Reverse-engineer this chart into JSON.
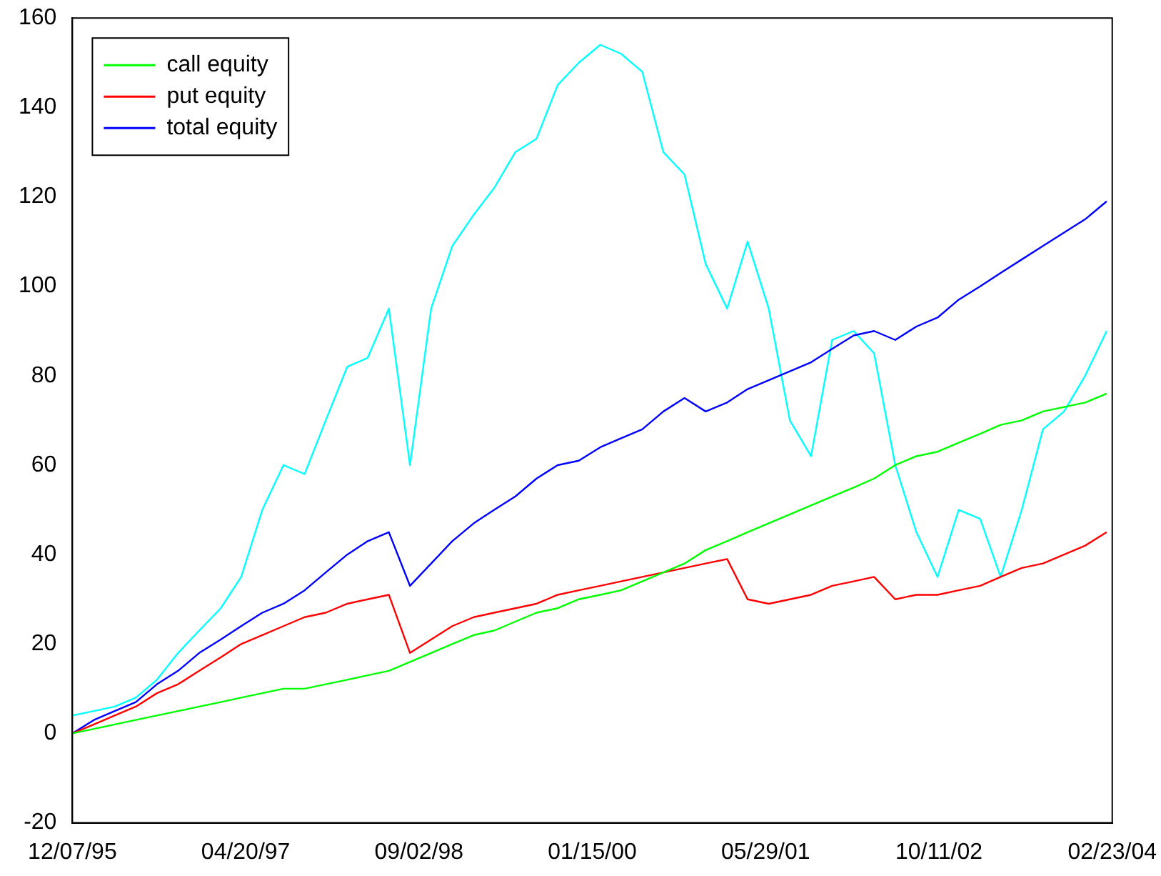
{
  "chart_data": {
    "type": "line",
    "x": [
      "1995-12-07",
      "1996-02-07",
      "1996-04-07",
      "1996-06-07",
      "1996-08-07",
      "1996-10-07",
      "1996-12-07",
      "1997-02-07",
      "1997-04-07",
      "1997-06-07",
      "1997-08-07",
      "1997-10-07",
      "1997-12-07",
      "1998-02-07",
      "1998-04-07",
      "1998-06-07",
      "1998-08-07",
      "1998-10-07",
      "1998-12-07",
      "1999-02-07",
      "1999-04-07",
      "1999-06-07",
      "1999-08-07",
      "1999-10-07",
      "1999-12-07",
      "2000-02-07",
      "2000-04-07",
      "2000-06-07",
      "2000-08-07",
      "2000-10-07",
      "2000-12-07",
      "2001-02-07",
      "2001-04-07",
      "2001-06-07",
      "2001-08-07",
      "2001-10-07",
      "2001-12-07",
      "2002-02-07",
      "2002-04-07",
      "2002-06-07",
      "2002-08-07",
      "2002-10-07",
      "2002-12-07",
      "2003-02-07",
      "2003-04-07",
      "2003-06-07",
      "2003-08-07",
      "2003-10-07",
      "2003-12-07",
      "2004-02-07"
    ],
    "series": [
      {
        "name": "call equity",
        "color": "#00ff00",
        "values": [
          0,
          1,
          2,
          3,
          4,
          5,
          6,
          7,
          8,
          9,
          10,
          10,
          11,
          12,
          13,
          14,
          16,
          18,
          20,
          22,
          23,
          25,
          27,
          28,
          30,
          31,
          32,
          34,
          36,
          38,
          41,
          43,
          45,
          47,
          49,
          51,
          53,
          55,
          57,
          60,
          62,
          63,
          65,
          67,
          69,
          70,
          72,
          73,
          74,
          76
        ]
      },
      {
        "name": "put equity",
        "color": "#ff0000",
        "values": [
          0,
          2,
          4,
          6,
          9,
          11,
          14,
          17,
          20,
          22,
          24,
          26,
          27,
          29,
          30,
          31,
          18,
          21,
          24,
          26,
          27,
          28,
          29,
          31,
          32,
          33,
          34,
          35,
          36,
          37,
          38,
          39,
          30,
          29,
          30,
          31,
          33,
          34,
          35,
          30,
          31,
          31,
          32,
          33,
          35,
          37,
          38,
          40,
          42,
          45
        ]
      },
      {
        "name": "total equity",
        "color": "#0000ff",
        "values": [
          0,
          3,
          5,
          7,
          11,
          14,
          18,
          21,
          24,
          27,
          29,
          32,
          36,
          40,
          43,
          45,
          33,
          38,
          43,
          47,
          50,
          53,
          57,
          60,
          61,
          64,
          66,
          68,
          72,
          75,
          72,
          74,
          77,
          79,
          81,
          83,
          86,
          89,
          90,
          88,
          91,
          93,
          97,
          100,
          103,
          106,
          109,
          112,
          115,
          119
        ]
      },
      {
        "color": "#00ffff",
        "values": [
          4,
          5,
          6,
          8,
          12,
          18,
          23,
          28,
          35,
          50,
          60,
          58,
          70,
          82,
          84,
          95,
          60,
          95,
          109,
          116,
          122,
          130,
          133,
          145,
          150,
          154,
          152,
          148,
          130,
          125,
          105,
          95,
          110,
          95,
          70,
          62,
          88,
          90,
          85,
          60,
          45,
          35,
          50,
          48,
          35,
          50,
          68,
          72,
          80,
          90
        ]
      }
    ],
    "xlim": [
      "1995-12-07",
      "2004-02-23"
    ],
    "xticks": [
      {
        "value": "1995-12-07",
        "label": "12/07/95"
      },
      {
        "value": "1997-04-20",
        "label": "04/20/97"
      },
      {
        "value": "1998-09-02",
        "label": "09/02/98"
      },
      {
        "value": "2000-01-15",
        "label": "01/15/00"
      },
      {
        "value": "2001-05-29",
        "label": "05/29/01"
      },
      {
        "value": "2002-10-11",
        "label": "10/11/02"
      },
      {
        "value": "2004-02-23",
        "label": "02/23/04"
      }
    ],
    "ylim": [
      -20,
      160
    ],
    "yticks": [
      -20,
      0,
      20,
      40,
      60,
      80,
      100,
      120,
      140,
      160
    ],
    "grid": false,
    "legend": "top left",
    "marker": "none",
    "line_style": "solid"
  }
}
